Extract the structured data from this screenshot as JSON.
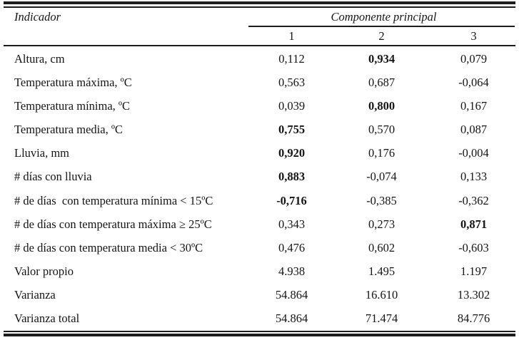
{
  "table": {
    "header": {
      "indicator_label": "Indicador",
      "group_label": "Componente principal",
      "columns": [
        "1",
        "2",
        "3"
      ]
    },
    "rows": [
      {
        "label": "Altura, cm",
        "values": [
          "0,112",
          "0,934",
          "0,079"
        ],
        "bold": [
          false,
          true,
          false
        ]
      },
      {
        "label": "Temperatura máxima, ºC",
        "values": [
          "0,563",
          "0,687",
          "-0,064"
        ],
        "bold": [
          false,
          false,
          false
        ]
      },
      {
        "label": "Temperatura mínima, ºC",
        "values": [
          "0,039",
          "0,800",
          "0,167"
        ],
        "bold": [
          false,
          true,
          false
        ]
      },
      {
        "label": "Temperatura media, ºC",
        "values": [
          "0,755",
          "0,570",
          "0,087"
        ],
        "bold": [
          true,
          false,
          false
        ]
      },
      {
        "label": "Lluvia, mm",
        "values": [
          "0,920",
          "0,176",
          "-0,004"
        ],
        "bold": [
          true,
          false,
          false
        ]
      },
      {
        "label": "# días con lluvia",
        "values": [
          "0,883",
          "-0,074",
          "0,133"
        ],
        "bold": [
          true,
          false,
          false
        ]
      },
      {
        "label": "# de días  con temperatura mínima < 15ºC",
        "values": [
          "-0,716",
          "-0,385",
          "-0,362"
        ],
        "bold": [
          true,
          false,
          false
        ]
      },
      {
        "label": "# de días con temperatura máxima ≥ 25ºC",
        "values": [
          "0,343",
          "0,273",
          "0,871"
        ],
        "bold": [
          false,
          false,
          true
        ]
      },
      {
        "label": "# de días con temperatura media < 30ºC",
        "values": [
          "0,476",
          "0,602",
          "-0,603"
        ],
        "bold": [
          false,
          false,
          false
        ]
      },
      {
        "label": "Valor propio",
        "values": [
          "4.938",
          "1.495",
          "1.197"
        ],
        "bold": [
          false,
          false,
          false
        ]
      },
      {
        "label": "Varianza",
        "values": [
          "54.864",
          "16.610",
          "13.302"
        ],
        "bold": [
          false,
          false,
          false
        ]
      },
      {
        "label": "Varianza total",
        "values": [
          "54.864",
          "71.474",
          "84.776"
        ],
        "bold": [
          false,
          false,
          false
        ]
      }
    ]
  }
}
